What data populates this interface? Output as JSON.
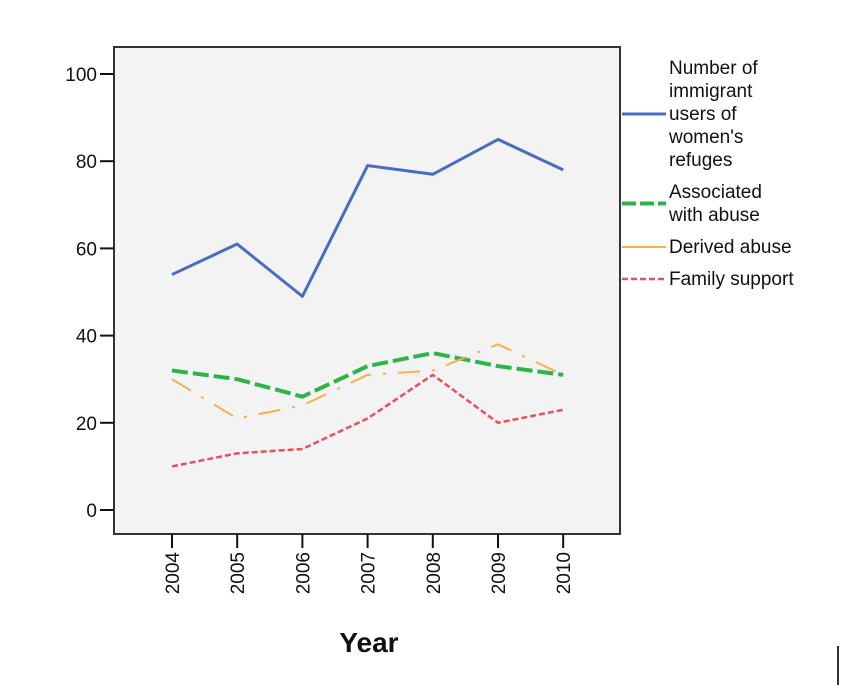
{
  "chart_data": {
    "type": "line",
    "title": "",
    "xlabel": "Year",
    "ylabel": "",
    "ylim": [
      0,
      100
    ],
    "yticks": [
      0,
      20,
      40,
      60,
      80,
      100
    ],
    "grid": false,
    "legend_position": "right",
    "categories": [
      "2004",
      "2005",
      "2006",
      "2007",
      "2008",
      "2009",
      "2010"
    ],
    "series": [
      {
        "name": "Number of immigrant users of women's refuges",
        "legend_lines": [
          "Number of",
          "immigrant",
          "users of",
          "women's",
          "refuges"
        ],
        "color": "#4a6bbf",
        "style": "solid",
        "values": [
          54,
          61,
          49,
          79,
          77,
          85,
          78
        ]
      },
      {
        "name": "Associated with abuse",
        "legend_lines": [
          "Associated",
          "with abuse"
        ],
        "color": "#2eb34a",
        "style": "long-dash",
        "values": [
          32,
          30,
          26,
          33,
          36,
          33,
          31
        ]
      },
      {
        "name": "Derived abuse",
        "legend_lines": [
          "Derived abuse"
        ],
        "color": "#f5b04a",
        "style": "dash-dot",
        "values": [
          30,
          21,
          24,
          31,
          32,
          38,
          31
        ]
      },
      {
        "name": "Family support",
        "legend_lines": [
          "Family support"
        ],
        "color": "#e8505f",
        "style": "short-dash",
        "values": [
          10,
          13,
          14,
          21,
          31,
          20,
          23
        ]
      }
    ]
  }
}
